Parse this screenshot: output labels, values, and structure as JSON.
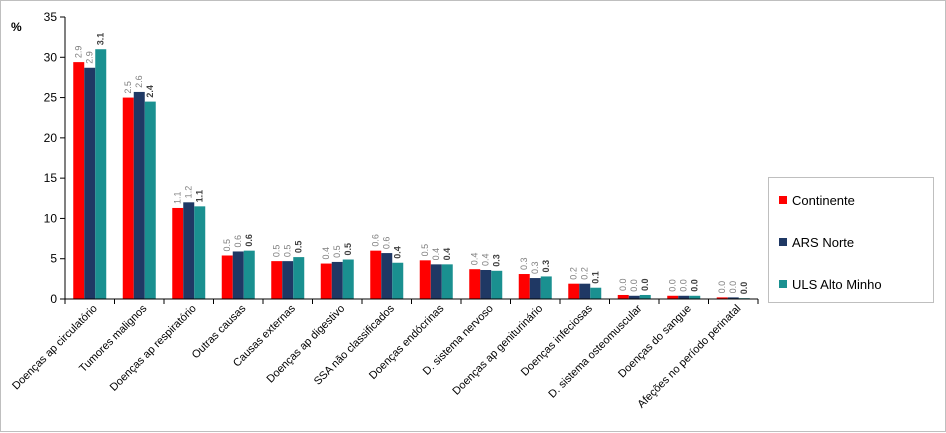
{
  "chart_data": {
    "type": "bar",
    "ylabel": "%",
    "ylim": [
      0,
      35
    ],
    "yticks": [
      0,
      5,
      10,
      15,
      20,
      25,
      30,
      35
    ],
    "grid": false,
    "legend_position": "right",
    "categories": [
      "Doenças ap circulatório",
      "Tumores malignos",
      "Doenças ap respiratório",
      "Outras causas",
      "Causas externas",
      "Doenças ap digestivo",
      "SSA não classificados",
      "Doenças endócrinas",
      "D. sistema nervoso",
      "Doenças ap geniturinário",
      "Doenças infeciosas",
      "D. sistema osteomuscular",
      "Doenças do sangue",
      "Afeções no período perinatal"
    ],
    "series": [
      {
        "name": "Continente",
        "color": "#ff0000",
        "values": [
          29.4,
          25.0,
          11.3,
          5.4,
          4.7,
          4.4,
          6.0,
          4.8,
          3.7,
          3.1,
          1.9,
          0.5,
          0.4,
          0.2
        ],
        "labels": [
          "2.9",
          "2.5",
          "1.1",
          "0.5",
          "0.5",
          "0.4",
          "0.6",
          "0.5",
          "0.4",
          "0.3",
          "0.2",
          "0.0",
          "0.0",
          "0.0"
        ]
      },
      {
        "name": "ARS Norte",
        "color": "#1f3864",
        "values": [
          28.7,
          25.7,
          12.0,
          5.9,
          4.7,
          4.6,
          5.7,
          4.3,
          3.6,
          2.6,
          1.9,
          0.4,
          0.4,
          0.2
        ],
        "labels": [
          "2.9",
          "2.6",
          "1.2",
          "0.6",
          "0.5",
          "0.5",
          "0.6",
          "0.4",
          "0.4",
          "0.3",
          "0.2",
          "0.0",
          "0.0",
          "0.0"
        ]
      },
      {
        "name": "ULS Alto Minho",
        "color": "#1a9090",
        "values": [
          31.0,
          24.5,
          11.5,
          6.0,
          5.2,
          4.9,
          4.5,
          4.3,
          3.5,
          2.8,
          1.4,
          0.5,
          0.4,
          0.1
        ],
        "labels": [
          "3.1",
          "2.4",
          "1.1",
          "0.6",
          "0.5",
          "0.5",
          "0.4",
          "0.4",
          "0.3",
          "0.3",
          "0.1",
          "0.0",
          "0.0",
          "0.0"
        ]
      }
    ]
  }
}
